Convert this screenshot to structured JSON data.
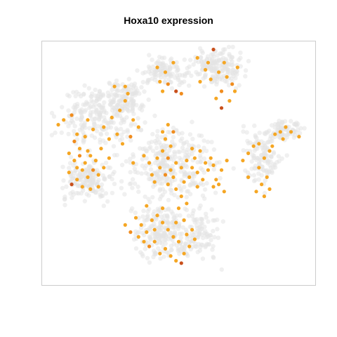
{
  "chart_data": {
    "type": "scatter",
    "title": "Hoxa10 expression",
    "xlabel": "",
    "ylabel": "",
    "xlim": [
      0,
      100
    ],
    "ylim": [
      0,
      100
    ],
    "axes_visible": false,
    "grid": false,
    "legend": "none",
    "colors": {
      "background_cells": "#e3e3e3",
      "low": "#f5a623",
      "mid": "#f08c1e",
      "high": "#c9501c",
      "frame": "#cccccc"
    },
    "background_clusters": [
      {
        "cx": 65,
        "cy": 90,
        "sx": 7,
        "sy": 5,
        "n": 170
      },
      {
        "cx": 45,
        "cy": 88,
        "sx": 6,
        "sy": 4,
        "n": 110
      },
      {
        "cx": 20,
        "cy": 70,
        "sx": 10,
        "sy": 9,
        "n": 240
      },
      {
        "cx": 31,
        "cy": 77,
        "sx": 5,
        "sy": 6,
        "n": 90
      },
      {
        "cx": 16,
        "cy": 43,
        "sx": 7,
        "sy": 6,
        "n": 170
      },
      {
        "cx": 47,
        "cy": 50,
        "sx": 12,
        "sy": 10,
        "n": 300
      },
      {
        "cx": 81,
        "cy": 53,
        "sx": 5,
        "sy": 9,
        "n": 120
      },
      {
        "cx": 90,
        "cy": 64,
        "sx": 5,
        "sy": 3,
        "n": 80
      },
      {
        "cx": 44,
        "cy": 22,
        "sx": 8,
        "sy": 9,
        "n": 220
      },
      {
        "cx": 58,
        "cy": 20,
        "sx": 5,
        "sy": 7,
        "n": 90
      }
    ],
    "expressing_points": [
      {
        "x": 63,
        "y": 97.5,
        "v": 3
      },
      {
        "x": 65,
        "y": 88,
        "v": 1
      },
      {
        "x": 67,
        "y": 92,
        "v": 1
      },
      {
        "x": 60,
        "y": 89,
        "v": 1
      },
      {
        "x": 62,
        "y": 85,
        "v": 1
      },
      {
        "x": 68,
        "y": 86,
        "v": 1
      },
      {
        "x": 70,
        "y": 83,
        "v": 2
      },
      {
        "x": 66,
        "y": 80,
        "v": 2
      },
      {
        "x": 72,
        "y": 90,
        "v": 1
      },
      {
        "x": 57,
        "y": 94,
        "v": 1
      },
      {
        "x": 58,
        "y": 84,
        "v": 1
      },
      {
        "x": 64,
        "y": 77,
        "v": 1
      },
      {
        "x": 66,
        "y": 73,
        "v": 3
      },
      {
        "x": 69,
        "y": 76,
        "v": 1
      },
      {
        "x": 71,
        "y": 80,
        "v": 1
      },
      {
        "x": 61,
        "y": 92,
        "v": 1
      },
      {
        "x": 48,
        "y": 92,
        "v": 1
      },
      {
        "x": 45,
        "y": 88,
        "v": 1
      },
      {
        "x": 43,
        "y": 84,
        "v": 1
      },
      {
        "x": 46,
        "y": 83,
        "v": 2
      },
      {
        "x": 49,
        "y": 80,
        "v": 3
      },
      {
        "x": 51,
        "y": 79,
        "v": 2
      },
      {
        "x": 44,
        "y": 80,
        "v": 1
      },
      {
        "x": 42,
        "y": 90,
        "v": 1
      },
      {
        "x": 10,
        "y": 70,
        "v": 2
      },
      {
        "x": 5,
        "y": 66,
        "v": 1
      },
      {
        "x": 7,
        "y": 68,
        "v": 1
      },
      {
        "x": 12,
        "y": 62,
        "v": 1
      },
      {
        "x": 11,
        "y": 59,
        "v": 2
      },
      {
        "x": 15,
        "y": 61,
        "v": 1
      },
      {
        "x": 18,
        "y": 64,
        "v": 1
      },
      {
        "x": 16,
        "y": 68,
        "v": 1
      },
      {
        "x": 22,
        "y": 65,
        "v": 1
      },
      {
        "x": 25,
        "y": 69,
        "v": 1
      },
      {
        "x": 27,
        "y": 62,
        "v": 1
      },
      {
        "x": 24,
        "y": 60,
        "v": 1
      },
      {
        "x": 28,
        "y": 72,
        "v": 1
      },
      {
        "x": 30,
        "y": 76,
        "v": 1
      },
      {
        "x": 31,
        "y": 79,
        "v": 1
      },
      {
        "x": 30,
        "y": 82,
        "v": 1
      },
      {
        "x": 26,
        "y": 82,
        "v": 1
      },
      {
        "x": 33,
        "y": 68,
        "v": 1
      },
      {
        "x": 35,
        "y": 65,
        "v": 1
      },
      {
        "x": 32,
        "y": 61,
        "v": 2
      },
      {
        "x": 29,
        "y": 58,
        "v": 1
      },
      {
        "x": 13,
        "y": 56,
        "v": 1
      },
      {
        "x": 9,
        "y": 54,
        "v": 1
      },
      {
        "x": 11,
        "y": 51,
        "v": 1
      },
      {
        "x": 13,
        "y": 53,
        "v": 2
      },
      {
        "x": 15,
        "y": 50,
        "v": 1
      },
      {
        "x": 17,
        "y": 53,
        "v": 1
      },
      {
        "x": 19,
        "y": 51,
        "v": 1
      },
      {
        "x": 14,
        "y": 47,
        "v": 1
      },
      {
        "x": 16,
        "y": 44,
        "v": 1
      },
      {
        "x": 18,
        "y": 47,
        "v": 2
      },
      {
        "x": 20,
        "y": 45,
        "v": 1
      },
      {
        "x": 12,
        "y": 43,
        "v": 1
      },
      {
        "x": 10,
        "y": 41,
        "v": 3
      },
      {
        "x": 14,
        "y": 40,
        "v": 1
      },
      {
        "x": 17,
        "y": 39,
        "v": 1
      },
      {
        "x": 20,
        "y": 40,
        "v": 1
      },
      {
        "x": 22,
        "y": 48,
        "v": 1
      },
      {
        "x": 24,
        "y": 52,
        "v": 1
      },
      {
        "x": 12,
        "y": 48,
        "v": 1
      },
      {
        "x": 16,
        "y": 55,
        "v": 1
      },
      {
        "x": 21,
        "y": 56,
        "v": 1
      },
      {
        "x": 9,
        "y": 46,
        "v": 1
      },
      {
        "x": 46,
        "y": 66,
        "v": 1
      },
      {
        "x": 48,
        "y": 63,
        "v": 2
      },
      {
        "x": 45,
        "y": 60,
        "v": 1
      },
      {
        "x": 47,
        "y": 57,
        "v": 1
      },
      {
        "x": 44,
        "y": 55,
        "v": 1
      },
      {
        "x": 42,
        "y": 52,
        "v": 1
      },
      {
        "x": 46,
        "y": 52,
        "v": 2
      },
      {
        "x": 49,
        "y": 50,
        "v": 1
      },
      {
        "x": 47,
        "y": 47,
        "v": 1
      },
      {
        "x": 45,
        "y": 45,
        "v": 2
      },
      {
        "x": 43,
        "y": 48,
        "v": 1
      },
      {
        "x": 40,
        "y": 45,
        "v": 1
      },
      {
        "x": 39,
        "y": 50,
        "v": 1
      },
      {
        "x": 37,
        "y": 53,
        "v": 1
      },
      {
        "x": 51,
        "y": 48,
        "v": 1
      },
      {
        "x": 53,
        "y": 51,
        "v": 1
      },
      {
        "x": 55,
        "y": 48,
        "v": 1
      },
      {
        "x": 54,
        "y": 44,
        "v": 1
      },
      {
        "x": 57,
        "y": 46,
        "v": 1
      },
      {
        "x": 59,
        "y": 43,
        "v": 1
      },
      {
        "x": 61,
        "y": 47,
        "v": 1
      },
      {
        "x": 60,
        "y": 50,
        "v": 1
      },
      {
        "x": 62,
        "y": 52,
        "v": 1
      },
      {
        "x": 63,
        "y": 49,
        "v": 1
      },
      {
        "x": 64,
        "y": 43,
        "v": 1
      },
      {
        "x": 66,
        "y": 47,
        "v": 1
      },
      {
        "x": 68,
        "y": 51,
        "v": 1
      },
      {
        "x": 58,
        "y": 55,
        "v": 1
      },
      {
        "x": 55,
        "y": 56,
        "v": 1
      },
      {
        "x": 52,
        "y": 42,
        "v": 1
      },
      {
        "x": 49,
        "y": 39,
        "v": 1
      },
      {
        "x": 51,
        "y": 36,
        "v": 1
      },
      {
        "x": 50,
        "y": 31,
        "v": 1
      },
      {
        "x": 53,
        "y": 33,
        "v": 1
      },
      {
        "x": 46,
        "y": 41,
        "v": 1
      },
      {
        "x": 41,
        "y": 42,
        "v": 1
      },
      {
        "x": 48,
        "y": 44,
        "v": 1
      },
      {
        "x": 57,
        "y": 40,
        "v": 1
      },
      {
        "x": 63,
        "y": 40,
        "v": 1
      },
      {
        "x": 65,
        "y": 41,
        "v": 1
      },
      {
        "x": 67,
        "y": 38,
        "v": 1
      },
      {
        "x": 56,
        "y": 52,
        "v": 1
      },
      {
        "x": 44,
        "y": 63,
        "v": 1
      },
      {
        "x": 33,
        "y": 50,
        "v": 1
      },
      {
        "x": 78,
        "y": 57,
        "v": 1
      },
      {
        "x": 76,
        "y": 54,
        "v": 1
      },
      {
        "x": 82,
        "y": 52,
        "v": 1
      },
      {
        "x": 80,
        "y": 48,
        "v": 1
      },
      {
        "x": 83,
        "y": 44,
        "v": 1
      },
      {
        "x": 81,
        "y": 41,
        "v": 1
      },
      {
        "x": 79,
        "y": 38,
        "v": 1
      },
      {
        "x": 82,
        "y": 36,
        "v": 1
      },
      {
        "x": 84,
        "y": 39,
        "v": 1
      },
      {
        "x": 76,
        "y": 44,
        "v": 1
      },
      {
        "x": 74,
        "y": 51,
        "v": 1
      },
      {
        "x": 85,
        "y": 57,
        "v": 1
      },
      {
        "x": 86,
        "y": 62,
        "v": 1
      },
      {
        "x": 88,
        "y": 63,
        "v": 1
      },
      {
        "x": 90,
        "y": 65,
        "v": 1
      },
      {
        "x": 92,
        "y": 63,
        "v": 1
      },
      {
        "x": 95,
        "y": 61,
        "v": 1
      },
      {
        "x": 89,
        "y": 60,
        "v": 1
      },
      {
        "x": 84,
        "y": 55,
        "v": 1
      },
      {
        "x": 80,
        "y": 58,
        "v": 1
      },
      {
        "x": 30,
        "y": 24,
        "v": 1
      },
      {
        "x": 32,
        "y": 21,
        "v": 2
      },
      {
        "x": 35,
        "y": 19,
        "v": 1
      },
      {
        "x": 37,
        "y": 17,
        "v": 1
      },
      {
        "x": 39,
        "y": 15,
        "v": 2
      },
      {
        "x": 41,
        "y": 17,
        "v": 1
      },
      {
        "x": 38,
        "y": 21,
        "v": 1
      },
      {
        "x": 36,
        "y": 24,
        "v": 1
      },
      {
        "x": 40,
        "y": 26,
        "v": 1
      },
      {
        "x": 42,
        "y": 28,
        "v": 1
      },
      {
        "x": 44,
        "y": 25,
        "v": 1
      },
      {
        "x": 46,
        "y": 22,
        "v": 1
      },
      {
        "x": 48,
        "y": 19,
        "v": 1
      },
      {
        "x": 50,
        "y": 17,
        "v": 1
      },
      {
        "x": 45,
        "y": 14,
        "v": 1
      },
      {
        "x": 47,
        "y": 11,
        "v": 1
      },
      {
        "x": 49,
        "y": 9,
        "v": 1
      },
      {
        "x": 51,
        "y": 8,
        "v": 3
      },
      {
        "x": 52,
        "y": 12,
        "v": 1
      },
      {
        "x": 54,
        "y": 15,
        "v": 1
      },
      {
        "x": 56,
        "y": 18,
        "v": 1
      },
      {
        "x": 55,
        "y": 22,
        "v": 1
      },
      {
        "x": 43,
        "y": 12,
        "v": 1
      },
      {
        "x": 34,
        "y": 27,
        "v": 1
      },
      {
        "x": 38,
        "y": 32,
        "v": 1
      },
      {
        "x": 44,
        "y": 31,
        "v": 1
      },
      {
        "x": 49,
        "y": 25,
        "v": 1
      },
      {
        "x": 52,
        "y": 26,
        "v": 1
      },
      {
        "x": 53,
        "y": 20,
        "v": 1
      },
      {
        "x": 41,
        "y": 22,
        "v": 1
      }
    ]
  }
}
